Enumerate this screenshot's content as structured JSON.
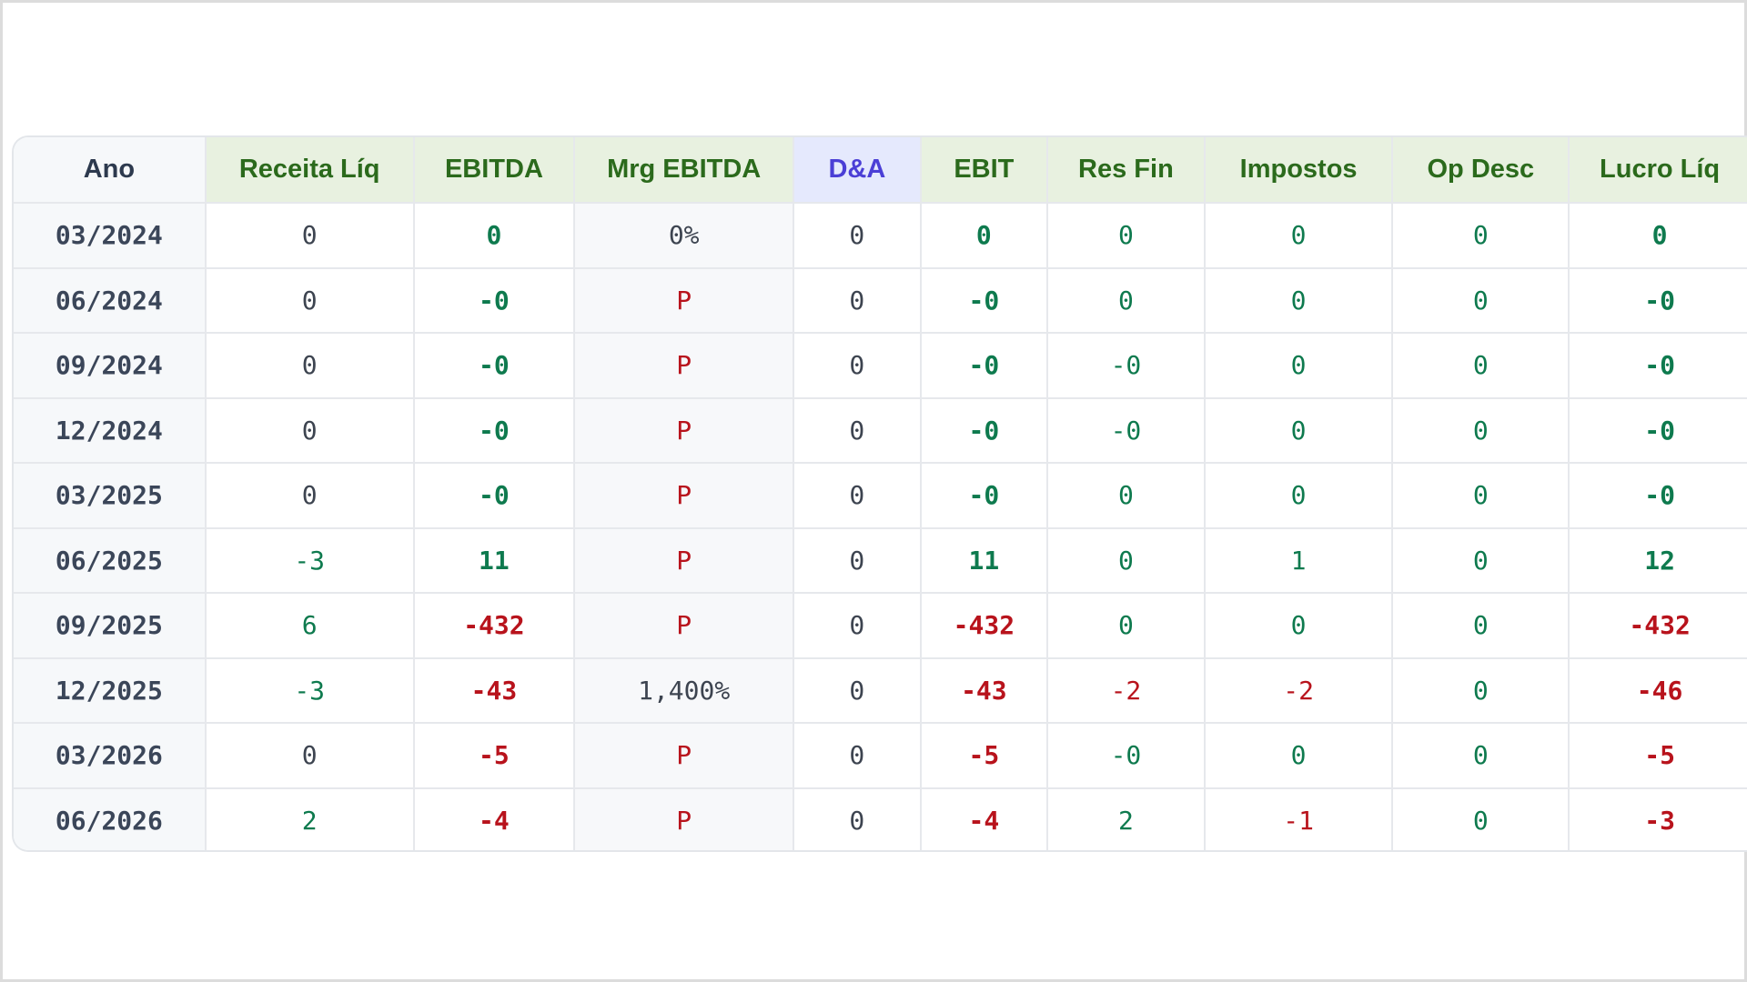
{
  "table": {
    "headers": [
      "Ano",
      "Receita Líq",
      "EBITDA",
      "Mrg EBITDA",
      "D&A",
      "EBIT",
      "Res Fin",
      "Impostos",
      "Op Desc",
      "Lucro Líq"
    ],
    "rows": [
      [
        "03/2024",
        "0",
        "0",
        "0%",
        "0",
        "0",
        "0",
        "0",
        "0",
        "0"
      ],
      [
        "06/2024",
        "0",
        "-0",
        "P",
        "0",
        "-0",
        "0",
        "0",
        "0",
        "-0"
      ],
      [
        "09/2024",
        "0",
        "-0",
        "P",
        "0",
        "-0",
        "-0",
        "0",
        "0",
        "-0"
      ],
      [
        "12/2024",
        "0",
        "-0",
        "P",
        "0",
        "-0",
        "-0",
        "0",
        "0",
        "-0"
      ],
      [
        "03/2025",
        "0",
        "-0",
        "P",
        "0",
        "-0",
        "0",
        "0",
        "0",
        "-0"
      ],
      [
        "06/2025",
        "-3",
        "11",
        "P",
        "0",
        "11",
        "0",
        "1",
        "0",
        "12"
      ],
      [
        "09/2025",
        "6",
        "-432",
        "P",
        "0",
        "-432",
        "0",
        "0",
        "0",
        "-432"
      ],
      [
        "12/2025",
        "-3",
        "-43",
        "1,400%",
        "0",
        "-43",
        "-2",
        "-2",
        "0",
        "-46"
      ],
      [
        "03/2026",
        "0",
        "-5",
        "P",
        "0",
        "-5",
        "-0",
        "0",
        "0",
        "-5"
      ],
      [
        "06/2026",
        "2",
        "-4",
        "P",
        "0",
        "-4",
        "2",
        "-1",
        "0",
        "-3"
      ]
    ],
    "cell_colors": [
      [
        "neutral",
        "neutral",
        "pos",
        "neutral",
        "neutral",
        "pos",
        "pos",
        "pos",
        "pos",
        "pos"
      ],
      [
        "neutral",
        "neutral",
        "pos",
        "neg",
        "neutral",
        "pos",
        "pos",
        "pos",
        "pos",
        "pos"
      ],
      [
        "neutral",
        "neutral",
        "pos",
        "neg",
        "neutral",
        "pos",
        "pos",
        "pos",
        "pos",
        "pos"
      ],
      [
        "neutral",
        "neutral",
        "pos",
        "neg",
        "neutral",
        "pos",
        "pos",
        "pos",
        "pos",
        "pos"
      ],
      [
        "neutral",
        "neutral",
        "pos",
        "neg",
        "neutral",
        "pos",
        "pos",
        "pos",
        "pos",
        "pos"
      ],
      [
        "neutral",
        "pos",
        "pos",
        "neg",
        "neutral",
        "pos",
        "pos",
        "pos",
        "pos",
        "pos"
      ],
      [
        "neutral",
        "pos",
        "neg",
        "neg",
        "neutral",
        "neg",
        "pos",
        "pos",
        "pos",
        "neg"
      ],
      [
        "neutral",
        "pos",
        "neg",
        "neutral",
        "neutral",
        "neg",
        "neg",
        "neg",
        "pos",
        "neg"
      ],
      [
        "neutral",
        "neutral",
        "neg",
        "neg",
        "neutral",
        "neg",
        "pos",
        "pos",
        "pos",
        "neg"
      ],
      [
        "neutral",
        "pos",
        "neg",
        "neg",
        "neutral",
        "neg",
        "pos",
        "neg",
        "pos",
        "neg"
      ]
    ],
    "colors": {
      "header_green_text": "#2b6a1c",
      "header_green_bg": "#e8f1e0",
      "header_da_text": "#4b3fd6",
      "header_da_bg": "#e5e9fd",
      "positive": "#0e7a4e",
      "negative": "#b8131c",
      "neutral": "#3d4450"
    }
  }
}
